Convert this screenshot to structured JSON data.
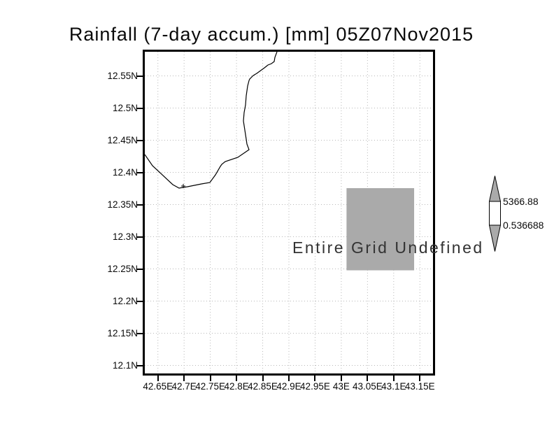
{
  "window": {
    "background": "#ffffff"
  },
  "chart_data": {
    "type": "map",
    "title": "Rainfall (7-day accum.) [mm] 05Z07Nov2015",
    "annotation": "Entire Grid Undefined",
    "grid": {
      "on": true,
      "style": "dotted",
      "color": "#b8b8b8"
    },
    "frame_color": "#000000",
    "x_axis": {
      "label_suffix": "E",
      "range": [
        42.625,
        43.175
      ],
      "ticks": [
        {
          "label": "42.65E",
          "value": 42.65
        },
        {
          "label": "42.7E",
          "value": 42.7
        },
        {
          "label": "42.75E",
          "value": 42.75
        },
        {
          "label": "42.8E",
          "value": 42.8
        },
        {
          "label": "42.85E",
          "value": 42.85
        },
        {
          "label": "42.9E",
          "value": 42.9
        },
        {
          "label": "42.95E",
          "value": 42.95
        },
        {
          "label": "43E",
          "value": 43.0
        },
        {
          "label": "43.05E",
          "value": 43.05
        },
        {
          "label": "43.1E",
          "value": 43.1
        },
        {
          "label": "43.15E",
          "value": 43.15
        }
      ]
    },
    "y_axis": {
      "label_suffix": "N",
      "range": [
        12.0875,
        12.5875
      ],
      "ticks": [
        {
          "label": "12.55N",
          "value": 12.55
        },
        {
          "label": "12.5N",
          "value": 12.5
        },
        {
          "label": "12.45N",
          "value": 12.45
        },
        {
          "label": "12.4N",
          "value": 12.4
        },
        {
          "label": "12.35N",
          "value": 12.35
        },
        {
          "label": "12.3N",
          "value": 12.3
        },
        {
          "label": "12.25N",
          "value": 12.25
        },
        {
          "label": "12.2N",
          "value": 12.2
        },
        {
          "label": "12.15N",
          "value": 12.15
        },
        {
          "label": "12.1N",
          "value": 12.1
        }
      ]
    },
    "undefined_region": {
      "lon": [
        43.01,
        43.139
      ],
      "lat": [
        12.2478,
        12.3755
      ],
      "fill": "#aaaaaa"
    },
    "coastline_color": "#000000",
    "coastline_lonlat": [
      [
        42.625,
        12.4277
      ],
      [
        42.6397,
        12.4103
      ],
      [
        42.6557,
        12.3983
      ],
      [
        42.6784,
        12.381
      ],
      [
        42.6904,
        12.3755
      ],
      [
        42.7064,
        12.3777
      ],
      [
        42.7331,
        12.3821
      ],
      [
        42.7491,
        12.3842
      ],
      [
        42.7598,
        12.3962
      ],
      [
        42.7692,
        12.4092
      ],
      [
        42.7718,
        12.4125
      ],
      [
        42.7785,
        12.4168
      ],
      [
        42.8025,
        12.4234
      ],
      [
        42.8239,
        12.4353
      ],
      [
        42.8199,
        12.444
      ],
      [
        42.8186,
        12.4516
      ],
      [
        42.8159,
        12.4658
      ],
      [
        42.8132,
        12.4799
      ],
      [
        42.8146,
        12.4929
      ],
      [
        42.8172,
        12.5049
      ],
      [
        42.8186,
        12.519
      ],
      [
        42.8212,
        12.5342
      ],
      [
        42.824,
        12.543
      ],
      [
        42.8252,
        12.5451
      ],
      [
        42.8319,
        12.5505
      ],
      [
        42.8386,
        12.5538
      ],
      [
        42.8533,
        12.5625
      ],
      [
        42.86,
        12.5668
      ],
      [
        42.8666,
        12.569
      ],
      [
        42.872,
        12.5723
      ],
      [
        42.8733,
        12.5788
      ],
      [
        42.8773,
        12.5875
      ]
    ],
    "island_marker": {
      "lon": 42.6984,
      "lat": 12.3788
    },
    "colorbar": {
      "max_label": "5366.88",
      "min_label": "0.536688",
      "arrow_fill": "#aaaaaa",
      "box_fill": "#ffffff",
      "outline": "#000000"
    }
  }
}
